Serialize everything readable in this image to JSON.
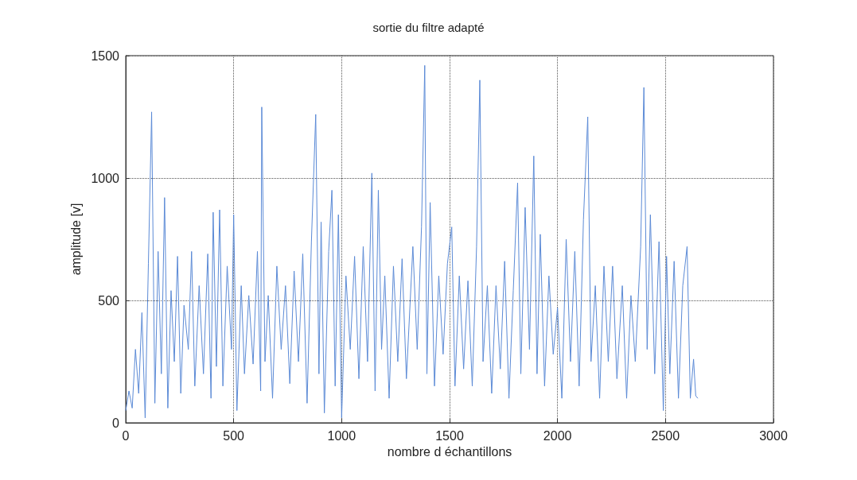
{
  "chart_data": {
    "type": "line",
    "title": "sortie du filtre adapté",
    "xlabel": "nombre d échantillons",
    "ylabel": "amplitude [v]",
    "xlim": [
      0,
      3000
    ],
    "xticks": [
      0,
      500,
      1000,
      1500,
      2000,
      2500,
      3000
    ],
    "ylim": [
      0,
      1500
    ],
    "yticks": [
      0,
      500,
      1000,
      1500
    ],
    "grid": true,
    "marker": "none",
    "line_style": "solid",
    "series": [
      {
        "color": "#5b8ad6",
        "x": [
          0,
          15,
          30,
          45,
          60,
          75,
          90,
          105,
          120,
          135,
          150,
          165,
          180,
          195,
          210,
          225,
          240,
          255,
          270,
          290,
          305,
          320,
          340,
          360,
          380,
          395,
          405,
          420,
          435,
          450,
          470,
          490,
          500,
          515,
          535,
          550,
          570,
          590,
          610,
          625,
          630,
          645,
          660,
          680,
          700,
          720,
          740,
          760,
          780,
          800,
          820,
          840,
          860,
          880,
          895,
          905,
          920,
          940,
          955,
          970,
          985,
          1000,
          1020,
          1040,
          1060,
          1080,
          1100,
          1120,
          1140,
          1155,
          1170,
          1185,
          1200,
          1220,
          1240,
          1260,
          1280,
          1300,
          1330,
          1350,
          1370,
          1385,
          1395,
          1410,
          1430,
          1450,
          1470,
          1490,
          1510,
          1525,
          1545,
          1565,
          1585,
          1605,
          1625,
          1640,
          1655,
          1675,
          1695,
          1715,
          1735,
          1755,
          1775,
          1795,
          1815,
          1830,
          1850,
          1870,
          1890,
          1905,
          1920,
          1940,
          1960,
          1980,
          2000,
          2020,
          2040,
          2060,
          2080,
          2100,
          2120,
          2140,
          2155,
          2175,
          2195,
          2215,
          2235,
          2255,
          2275,
          2300,
          2320,
          2340,
          2360,
          2385,
          2400,
          2415,
          2430,
          2450,
          2470,
          2490,
          2505,
          2520,
          2540,
          2560,
          2580,
          2600,
          2615,
          2630,
          2640,
          2650
        ],
        "values": [
          50,
          130,
          60,
          300,
          120,
          450,
          20,
          650,
          1270,
          80,
          700,
          200,
          920,
          60,
          540,
          250,
          680,
          120,
          480,
          300,
          700,
          150,
          560,
          200,
          690,
          100,
          860,
          230,
          870,
          150,
          640,
          300,
          850,
          50,
          560,
          200,
          520,
          240,
          700,
          130,
          1290,
          250,
          520,
          100,
          640,
          300,
          560,
          160,
          620,
          250,
          690,
          80,
          740,
          1260,
          200,
          820,
          40,
          700,
          950,
          150,
          850,
          20,
          600,
          300,
          680,
          180,
          720,
          250,
          1020,
          130,
          950,
          300,
          600,
          100,
          640,
          250,
          670,
          180,
          720,
          300,
          800,
          1460,
          200,
          900,
          150,
          600,
          280,
          650,
          800,
          150,
          600,
          220,
          580,
          150,
          720,
          1400,
          250,
          560,
          120,
          560,
          220,
          660,
          100,
          540,
          980,
          200,
          880,
          300,
          1090,
          200,
          770,
          150,
          600,
          280,
          470,
          100,
          750,
          250,
          700,
          150,
          830,
          1250,
          250,
          560,
          100,
          640,
          250,
          640,
          180,
          560,
          100,
          520,
          250,
          720,
          1370,
          300,
          850,
          200,
          740,
          50,
          680,
          200,
          660,
          100,
          560,
          720,
          100,
          260,
          110,
          100
        ]
      }
    ]
  }
}
